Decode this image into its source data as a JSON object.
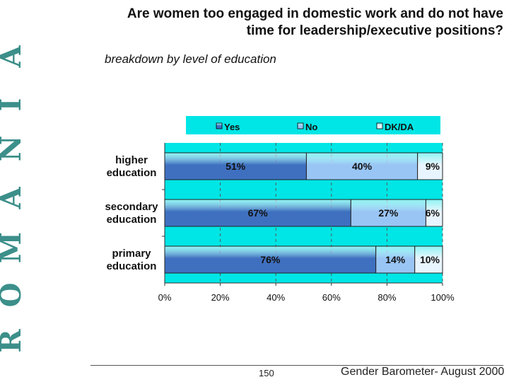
{
  "brand": {
    "letters": [
      "R",
      "O",
      "M",
      "Â",
      "N",
      "I",
      "A"
    ]
  },
  "header": {
    "title_line1": "Are women too engaged in domestic work and do not have",
    "title_line2": "time for leadership/executive positions?",
    "subtitle": "breakdown by level of education"
  },
  "footer": {
    "page_number": "150",
    "source": "Gender Barometer- August 2000"
  },
  "colors": {
    "plot_background": "#00e5e5",
    "yes": "#3f70c0",
    "no": "#99c5f5",
    "dk_da": "#e8f4ff",
    "brand": "#3c8f8a"
  },
  "chart_data": {
    "type": "bar",
    "orientation": "horizontal",
    "stacked": true,
    "categories": [
      [
        "higher",
        "education"
      ],
      [
        "secondary",
        "education"
      ],
      [
        "primary",
        "education"
      ]
    ],
    "series": [
      {
        "name": "Yes",
        "values": [
          51,
          67,
          76
        ],
        "labels": [
          "51%",
          "67%",
          "76%"
        ]
      },
      {
        "name": "No",
        "values": [
          40,
          27,
          14
        ],
        "labels": [
          "40%",
          "27%",
          "14%"
        ]
      },
      {
        "name": "DK/DA",
        "values": [
          9,
          6,
          10
        ],
        "labels": [
          "9%",
          "6%",
          "10%"
        ]
      }
    ],
    "xticks": [
      "0%",
      "20%",
      "40%",
      "60%",
      "80%",
      "100%"
    ],
    "xlim": [
      0,
      100
    ],
    "legend_position": "top",
    "grid": "vertical dashed"
  }
}
